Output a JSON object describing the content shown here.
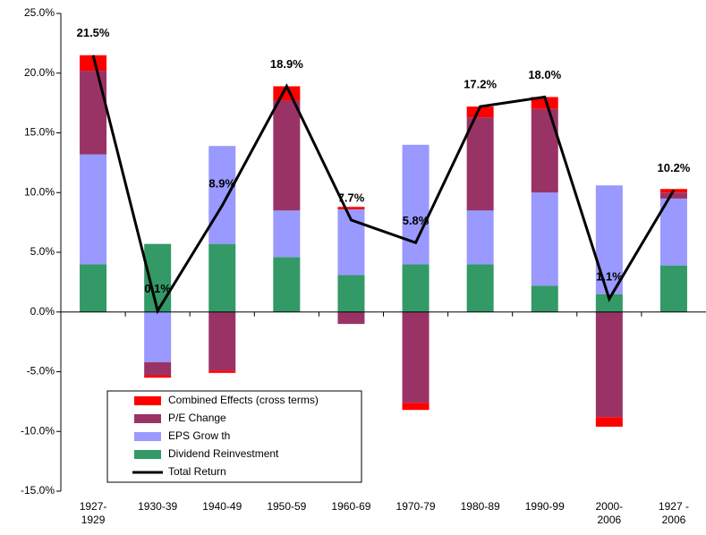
{
  "chart_data": {
    "type": "bar",
    "categories": [
      "1927-\n1929",
      "1930-39",
      "1940-49",
      "1950-59",
      "1960-69",
      "1970-79",
      "1980-89",
      "1990-99",
      "2000-\n2006",
      "1927 -\n2006"
    ],
    "series": [
      {
        "name": "Combined Effects (cross terms)",
        "color": "#ff0000",
        "values": [
          1.3,
          -0.2,
          -0.2,
          1.2,
          0.2,
          -0.6,
          0.9,
          1.0,
          -0.8,
          0.3
        ]
      },
      {
        "name": "P/E Change",
        "color": "#993366",
        "values": [
          7.0,
          -1.1,
          -4.9,
          9.2,
          -1.0,
          -7.6,
          7.8,
          7.0,
          -8.8,
          0.5
        ]
      },
      {
        "name": "EPS Grow th",
        "color": "#9999ff",
        "values": [
          9.2,
          -4.2,
          8.2,
          3.9,
          5.5,
          10.0,
          4.5,
          7.8,
          9.1,
          5.6
        ]
      },
      {
        "name": "Dividend Reinvestment",
        "color": "#339966",
        "values": [
          4.0,
          5.7,
          5.7,
          4.6,
          3.1,
          4.0,
          4.0,
          2.2,
          1.5,
          3.9
        ]
      },
      {
        "name": "Total Return",
        "type": "line",
        "color": "#000000",
        "values": [
          21.5,
          0.1,
          8.9,
          18.9,
          7.7,
          5.8,
          17.2,
          18.0,
          1.1,
          10.2
        ],
        "value_labels": [
          "21.5%",
          "0.1%",
          "8.9%",
          "18.9%",
          "7.7%",
          "5.8%",
          "17.2%",
          "18.0%",
          "1.1%",
          "10.2%"
        ]
      }
    ],
    "ylim": [
      -15,
      25
    ],
    "yticks": [
      {
        "value": -15,
        "label": "-15.0%"
      },
      {
        "value": -10,
        "label": "-10.0%"
      },
      {
        "value": -5,
        "label": "-5.0%"
      },
      {
        "value": 0,
        "label": "0.0%"
      },
      {
        "value": 5,
        "label": "5.0%"
      },
      {
        "value": 10,
        "label": "10.0%"
      },
      {
        "value": 15,
        "label": "15.0%"
      },
      {
        "value": 20,
        "label": "20.0%"
      },
      {
        "value": 25,
        "label": "25.0%"
      }
    ],
    "grid": false,
    "legend": "lower left"
  }
}
